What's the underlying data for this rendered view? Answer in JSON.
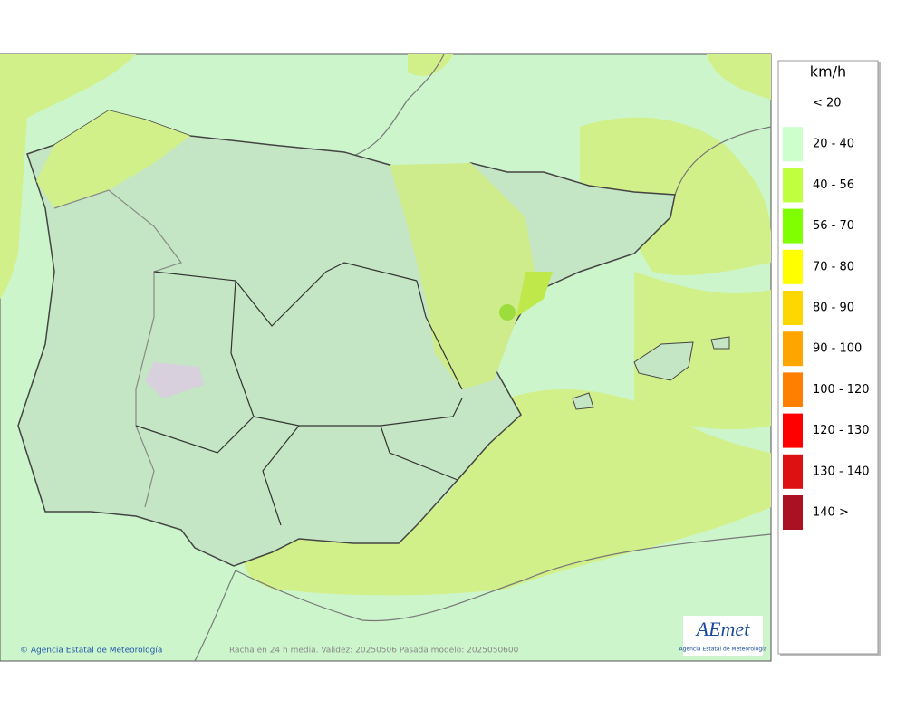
{
  "legend": {
    "title": "km/h",
    "items": [
      {
        "label": "< 20",
        "color": "#ffffff"
      },
      {
        "label": "20 - 40",
        "color": "#ccffcc"
      },
      {
        "label": "40 - 56",
        "color": "#bfff3f"
      },
      {
        "label": "56 - 70",
        "color": "#80ff00"
      },
      {
        "label": "70 - 80",
        "color": "#ffff00"
      },
      {
        "label": "80 - 90",
        "color": "#ffd700"
      },
      {
        "label": "90 - 100",
        "color": "#ffa500"
      },
      {
        "label": "100 - 120",
        "color": "#ff8000"
      },
      {
        "label": "120 - 130",
        "color": "#ff0000"
      },
      {
        "label": "130 - 140",
        "color": "#dd1111"
      },
      {
        "label": "140 >",
        "color": "#aa1122"
      }
    ]
  },
  "credit": "© Agencia Estatal de Meteorología",
  "caption": "Racha en 24 h media. Validez: 20250506 Pasada modelo: 2025050600",
  "logo": {
    "text": "AEmet",
    "subtitle": "Agencia Estatal de Meteorología"
  }
}
